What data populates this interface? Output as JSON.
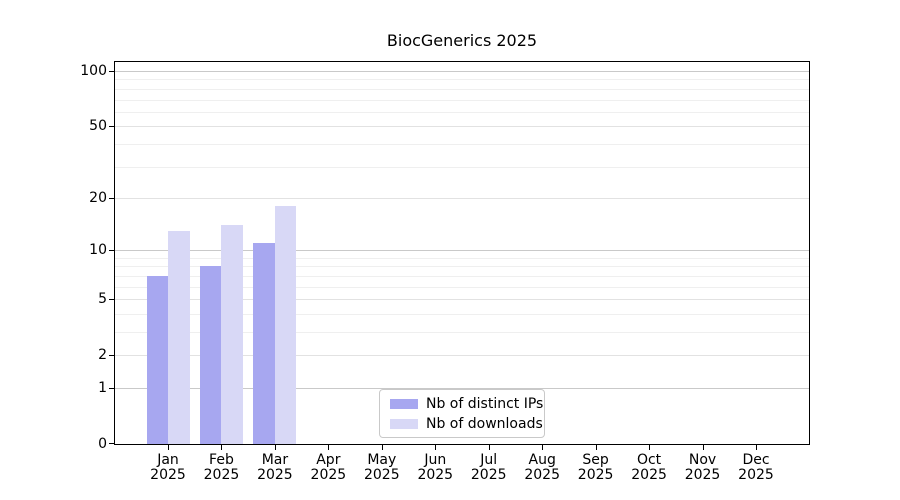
{
  "title": "BiocGenerics 2025",
  "chart_data": {
    "type": "bar",
    "title": "BiocGenerics 2025",
    "categories": [
      "Jan",
      "Feb",
      "Mar",
      "Apr",
      "May",
      "Jun",
      "Jul",
      "Aug",
      "Sep",
      "Oct",
      "Nov",
      "Dec"
    ],
    "year_label": "2025",
    "series": [
      {
        "name": "Nb of distinct IPs",
        "color": "#a7a7f0",
        "values": [
          7,
          8,
          11,
          0,
          0,
          0,
          0,
          0,
          0,
          0,
          0,
          0
        ]
      },
      {
        "name": "Nb of downloads",
        "color": "#d8d8f6",
        "values": [
          13,
          14,
          18,
          0,
          0,
          0,
          0,
          0,
          0,
          0,
          0,
          0
        ]
      }
    ],
    "yscale": "log1p",
    "ylim": [
      0,
      112
    ],
    "yticks": [
      0,
      1,
      2,
      5,
      10,
      20,
      50,
      100
    ],
    "minor_gridlines": [
      3,
      4,
      6,
      7,
      8,
      9,
      30,
      40,
      60,
      70,
      80,
      90
    ],
    "grid": "horizontal",
    "legend_position": "bottom-center",
    "colors": {
      "major_grid": "#c9c9c9",
      "mid_grid": "#e2e2e2",
      "minor_grid": "#efefef",
      "axis": "#000000",
      "legend_border": "#c9c9c9",
      "background": "#ffffff"
    }
  }
}
